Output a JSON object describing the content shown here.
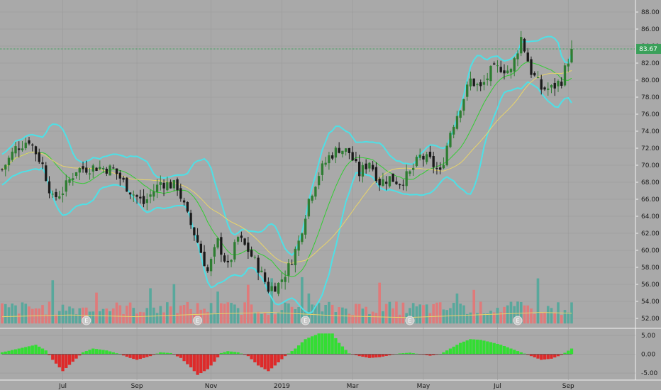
{
  "colors": {
    "background": "#a9a9a9",
    "grid": "#9a9a9a",
    "up": "#2e7d32",
    "down": "#1a1a1a",
    "bollinger": "#4ee0e6",
    "ma_fast": "#33cc33",
    "ma_slow": "#e8d46a",
    "vol_up": "#58a89c",
    "vol_down": "#e07a7a",
    "osc_up": "#33dd33",
    "osc_down": "#dd2a2a",
    "price_tag": "#3aa05a"
  },
  "chart_data": {
    "type": "candlestick",
    "price_axis": {
      "ylim": [
        51.0,
        89.0
      ],
      "ticks": [
        "52.00",
        "54.00",
        "56.00",
        "58.00",
        "60.00",
        "62.00",
        "64.00",
        "66.00",
        "68.00",
        "70.00",
        "72.00",
        "74.00",
        "76.00",
        "78.00",
        "80.00",
        "82.00",
        "84.00",
        "86.00",
        "88.00"
      ],
      "tick_values": [
        52,
        54,
        56,
        58,
        60,
        62,
        64,
        66,
        68,
        70,
        72,
        74,
        76,
        78,
        80,
        82,
        84,
        86,
        88
      ],
      "last_price_label": "83.67",
      "last_price": 83.67
    },
    "oscillator_axis": {
      "ylim": [
        -6.5,
        6.5
      ],
      "ticks": [
        "5.00",
        "0.00",
        "-5.00"
      ],
      "tick_values": [
        5,
        0,
        -5
      ]
    },
    "x_axis": {
      "labels": [
        "Jul",
        "Sep",
        "Nov",
        "2019",
        "Mar",
        "May",
        "Jul",
        "Sep"
      ],
      "label_index": [
        18,
        40,
        62,
        83,
        104,
        125,
        147,
        168
      ]
    },
    "earnings_marker": "E",
    "earnings_index": [
      25,
      58,
      90,
      121,
      153
    ],
    "close_anchors": [
      [
        0,
        69.5
      ],
      [
        4,
        72
      ],
      [
        8,
        73
      ],
      [
        12,
        70
      ],
      [
        15,
        66
      ],
      [
        18,
        67
      ],
      [
        22,
        69.5
      ],
      [
        28,
        69.8
      ],
      [
        33,
        69.5
      ],
      [
        38,
        67
      ],
      [
        42,
        65.5
      ],
      [
        47,
        68
      ],
      [
        52,
        67.5
      ],
      [
        55,
        64
      ],
      [
        58,
        61
      ],
      [
        61,
        57.5
      ],
      [
        64,
        61
      ],
      [
        67,
        58
      ],
      [
        70,
        61.5
      ],
      [
        73,
        60
      ],
      [
        76,
        58
      ],
      [
        79,
        55.5
      ],
      [
        82,
        56
      ],
      [
        85,
        58
      ],
      [
        88,
        61
      ],
      [
        91,
        66
      ],
      [
        94,
        69
      ],
      [
        97,
        71
      ],
      [
        100,
        72
      ],
      [
        103,
        71.5
      ],
      [
        106,
        69
      ],
      [
        109,
        70.5
      ],
      [
        112,
        68
      ],
      [
        115,
        68.5
      ],
      [
        118,
        68
      ],
      [
        121,
        69
      ],
      [
        124,
        71
      ],
      [
        127,
        70.5
      ],
      [
        130,
        69
      ],
      [
        133,
        74
      ],
      [
        136,
        77
      ],
      [
        139,
        80
      ],
      [
        142,
        79
      ],
      [
        145,
        81
      ],
      [
        148,
        81.5
      ],
      [
        151,
        81
      ],
      [
        154,
        85
      ],
      [
        157,
        81
      ],
      [
        160,
        79
      ],
      [
        163,
        79
      ],
      [
        166,
        80
      ],
      [
        169,
        83.67
      ]
    ],
    "volume_anchors": [
      [
        0,
        52.2
      ],
      [
        20,
        52.4
      ],
      [
        40,
        52.2
      ],
      [
        60,
        52.5
      ],
      [
        80,
        52.7
      ],
      [
        100,
        52.3
      ],
      [
        120,
        52.1
      ],
      [
        140,
        52.4
      ],
      [
        160,
        52.7
      ],
      [
        169,
        52.6
      ]
    ],
    "oscillator_anchors": [
      [
        0,
        0.5
      ],
      [
        5,
        1.5
      ],
      [
        10,
        2.5
      ],
      [
        13,
        1.0
      ],
      [
        15,
        -1.5
      ],
      [
        18,
        -4.5
      ],
      [
        21,
        -2.0
      ],
      [
        24,
        0.5
      ],
      [
        27,
        1.5
      ],
      [
        31,
        1.0
      ],
      [
        35,
        0.0
      ],
      [
        38,
        -1.0
      ],
      [
        40,
        -1.5
      ],
      [
        44,
        -0.5
      ],
      [
        47,
        0.5
      ],
      [
        50,
        0.3
      ],
      [
        53,
        -1.0
      ],
      [
        56,
        -3.5
      ],
      [
        58,
        -5.5
      ],
      [
        61,
        -4.0
      ],
      [
        63,
        -2.0
      ],
      [
        65,
        0.3
      ],
      [
        67,
        0.8
      ],
      [
        70,
        0.5
      ],
      [
        73,
        -0.5
      ],
      [
        76,
        -3.0
      ],
      [
        79,
        -4.5
      ],
      [
        81,
        -3.0
      ],
      [
        84,
        -0.5
      ],
      [
        87,
        1.5
      ],
      [
        90,
        4.0
      ],
      [
        94,
        5.5
      ],
      [
        98,
        5.5
      ],
      [
        100,
        3.0
      ],
      [
        103,
        0.2
      ],
      [
        106,
        -0.5
      ],
      [
        109,
        -1.0
      ],
      [
        112,
        -0.8
      ],
      [
        115,
        -0.3
      ],
      [
        118,
        0.2
      ],
      [
        121,
        0.4
      ],
      [
        124,
        0.0
      ],
      [
        127,
        -0.4
      ],
      [
        130,
        0.0
      ],
      [
        133,
        1.5
      ],
      [
        136,
        3.0
      ],
      [
        139,
        4.0
      ],
      [
        142,
        3.8
      ],
      [
        145,
        3.2
      ],
      [
        148,
        2.5
      ],
      [
        151,
        1.5
      ],
      [
        154,
        0.5
      ],
      [
        157,
        -0.5
      ],
      [
        160,
        -1.5
      ],
      [
        163,
        -1.2
      ],
      [
        166,
        -0.2
      ],
      [
        169,
        1.5
      ]
    ],
    "n_bars": 170
  }
}
